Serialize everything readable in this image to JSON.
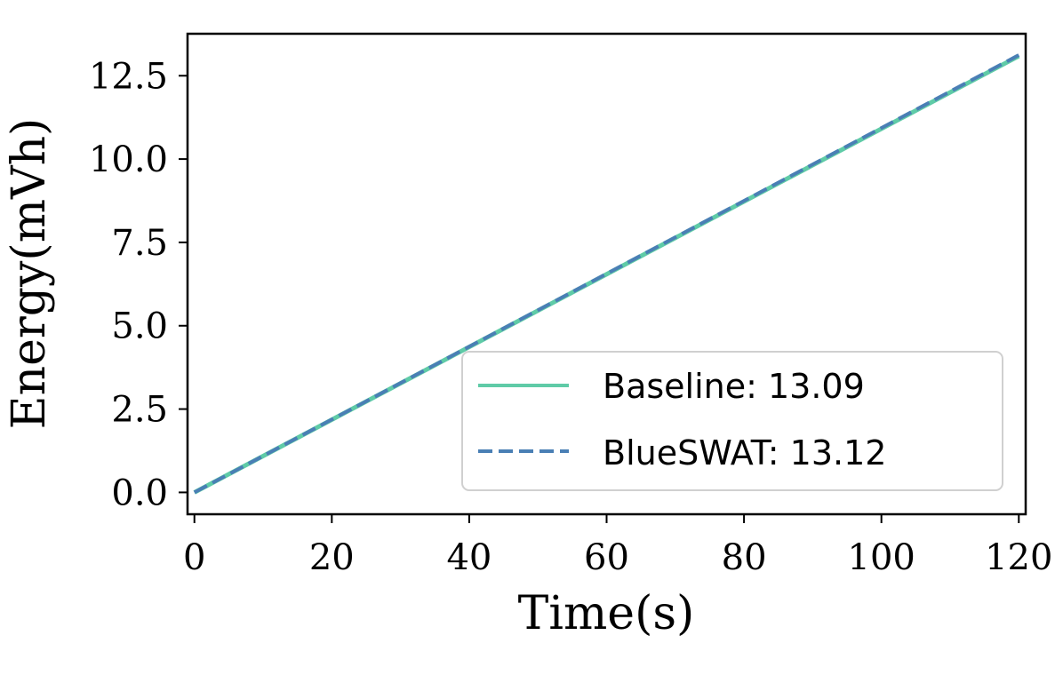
{
  "chart_data": {
    "type": "line",
    "title": "",
    "xlabel": "Time(s)",
    "ylabel": "Energy(mVh)",
    "xlim": [
      -1,
      121
    ],
    "ylim": [
      -0.6552,
      13.7592
    ],
    "xticks": [
      0,
      20,
      40,
      60,
      80,
      100,
      120
    ],
    "xtick_labels": [
      "0",
      "20",
      "40",
      "60",
      "80",
      "100",
      "120"
    ],
    "yticks": [
      0,
      2.5,
      5,
      7.5,
      10,
      12.5
    ],
    "ytick_labels": [
      "0.0",
      "2.5",
      "5.0",
      "7.5",
      "10.0",
      "12.5"
    ],
    "grid": false,
    "legend_position": "lower-right",
    "series": [
      {
        "name": "Baseline: 13.09",
        "color": "#5fcba7",
        "style": "solid",
        "x": [
          0,
          120
        ],
        "y": [
          0,
          13.09
        ]
      },
      {
        "name": "BlueSWAT: 13.12",
        "color": "#4a7fb5",
        "style": "dashed",
        "x": [
          0,
          120
        ],
        "y": [
          0,
          13.12
        ]
      }
    ]
  }
}
